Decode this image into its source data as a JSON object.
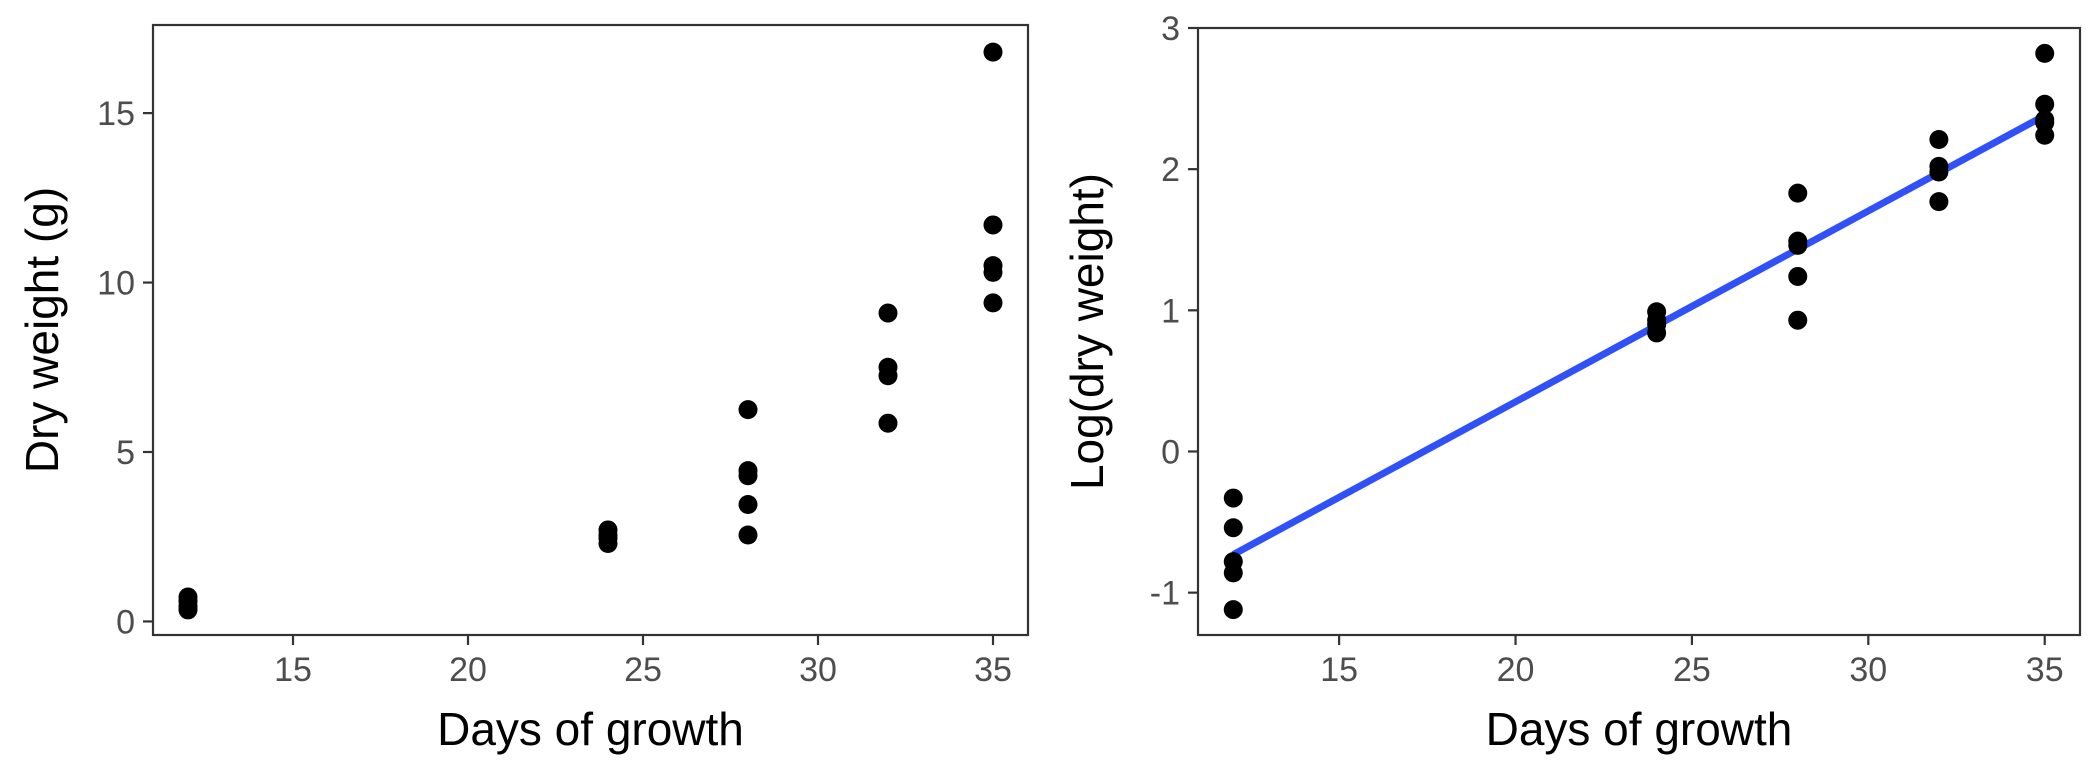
{
  "chart_data": [
    {
      "type": "scatter",
      "xlabel": "Days of growth",
      "ylabel": "Dry weight (g)",
      "xlim": [
        11,
        36
      ],
      "ylim": [
        -0.4,
        17.6
      ],
      "xticks": [
        15,
        20,
        25,
        30,
        35
      ],
      "xtick_labels": [
        "15",
        "20",
        "25",
        "30",
        "35"
      ],
      "yticks": [
        0,
        5,
        10,
        15
      ],
      "ytick_labels": [
        "0",
        "5",
        "10",
        "15"
      ],
      "grid": false,
      "point_color": "#000000",
      "points": [
        {
          "x": 12,
          "y": 0.72
        },
        {
          "x": 12,
          "y": 0.6
        },
        {
          "x": 12,
          "y": 0.45
        },
        {
          "x": 12,
          "y": 0.34
        },
        {
          "x": 24,
          "y": 2.7
        },
        {
          "x": 24,
          "y": 2.55
        },
        {
          "x": 24,
          "y": 2.45
        },
        {
          "x": 24,
          "y": 2.3
        },
        {
          "x": 28,
          "y": 6.25
        },
        {
          "x": 28,
          "y": 4.45
        },
        {
          "x": 28,
          "y": 4.3
        },
        {
          "x": 28,
          "y": 3.45
        },
        {
          "x": 28,
          "y": 2.55
        },
        {
          "x": 32,
          "y": 9.1
        },
        {
          "x": 32,
          "y": 7.5
        },
        {
          "x": 32,
          "y": 7.25
        },
        {
          "x": 32,
          "y": 5.85
        },
        {
          "x": 35,
          "y": 16.8
        },
        {
          "x": 35,
          "y": 11.7
        },
        {
          "x": 35,
          "y": 10.5
        },
        {
          "x": 35,
          "y": 10.3
        },
        {
          "x": 35,
          "y": 9.4
        }
      ]
    },
    {
      "type": "scatter",
      "xlabel": "Days of growth",
      "ylabel": "Log(dry weight)",
      "xlim": [
        11,
        36
      ],
      "ylim": [
        -1.3,
        3.0
      ],
      "xticks": [
        15,
        20,
        25,
        30,
        35
      ],
      "xtick_labels": [
        "15",
        "20",
        "25",
        "30",
        "35"
      ],
      "yticks": [
        -1,
        0,
        1,
        2,
        3
      ],
      "ytick_labels": [
        "-1",
        "0",
        "1",
        "2",
        "3"
      ],
      "grid": false,
      "point_color": "#000000",
      "points": [
        {
          "x": 12,
          "y": -0.33
        },
        {
          "x": 12,
          "y": -0.54
        },
        {
          "x": 12,
          "y": -0.78
        },
        {
          "x": 12,
          "y": -0.86
        },
        {
          "x": 12,
          "y": -1.12
        },
        {
          "x": 24,
          "y": 0.99
        },
        {
          "x": 24,
          "y": 0.93
        },
        {
          "x": 24,
          "y": 0.9
        },
        {
          "x": 24,
          "y": 0.84
        },
        {
          "x": 28,
          "y": 1.83
        },
        {
          "x": 28,
          "y": 1.49
        },
        {
          "x": 28,
          "y": 1.46
        },
        {
          "x": 28,
          "y": 1.24
        },
        {
          "x": 28,
          "y": 0.93
        },
        {
          "x": 32,
          "y": 2.21
        },
        {
          "x": 32,
          "y": 2.02
        },
        {
          "x": 32,
          "y": 1.98
        },
        {
          "x": 32,
          "y": 1.77
        },
        {
          "x": 35,
          "y": 2.82
        },
        {
          "x": 35,
          "y": 2.46
        },
        {
          "x": 35,
          "y": 2.35
        },
        {
          "x": 35,
          "y": 2.33
        },
        {
          "x": 35,
          "y": 2.24
        }
      ],
      "fit_line": {
        "x": [
          12,
          35
        ],
        "y": [
          -0.73,
          2.38
        ],
        "color": "#3050f8"
      }
    }
  ]
}
